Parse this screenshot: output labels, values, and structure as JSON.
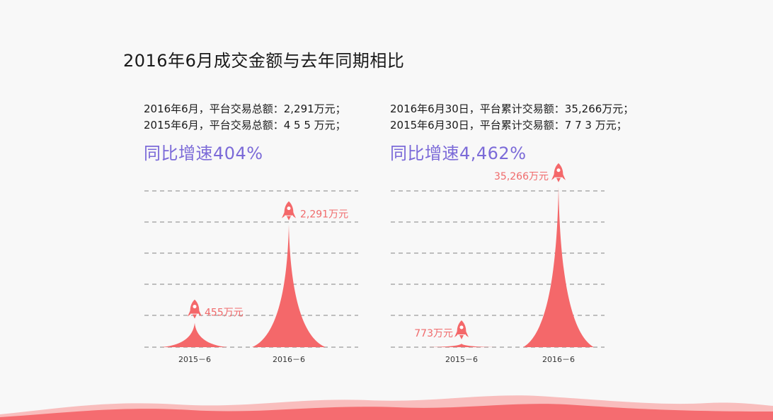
{
  "page": {
    "title": "2016年6月成交金额与去年同期相比"
  },
  "left_panel": {
    "line1": "2016年6月，平台交易总额：2,291万元；",
    "line2": "2015年6月，平台交易总额：4 5 5 万元；",
    "growth": "同比增速404%"
  },
  "right_panel": {
    "line1": "2016年6月30日，平台累计交易额：35,266万元；",
    "line2": "2015年6月30日，平台累计交易额：7 7 3 万元；",
    "growth": "同比增速4,462%"
  },
  "colors": {
    "spike": "#f4686a",
    "label": "#f06a6b",
    "grid": "#9a9a9a",
    "growth": "#7b6ad8",
    "wave": "#f56c70"
  },
  "chart_data": [
    {
      "type": "bar",
      "categories": [
        "2015－6",
        "2016－6"
      ],
      "values": [
        455,
        2291
      ],
      "value_labels": [
        "455万元",
        "2,291万元"
      ],
      "ylim": [
        0,
        2920
      ],
      "grid": true,
      "marker_icon": "rocket-icon"
    },
    {
      "type": "bar",
      "categories": [
        "2015－6",
        "2016－6"
      ],
      "values": [
        773,
        35266
      ],
      "value_labels": [
        "773万元",
        "35,266万元"
      ],
      "ylim": [
        0,
        34300
      ],
      "grid": true,
      "marker_icon": "rocket-icon"
    }
  ]
}
